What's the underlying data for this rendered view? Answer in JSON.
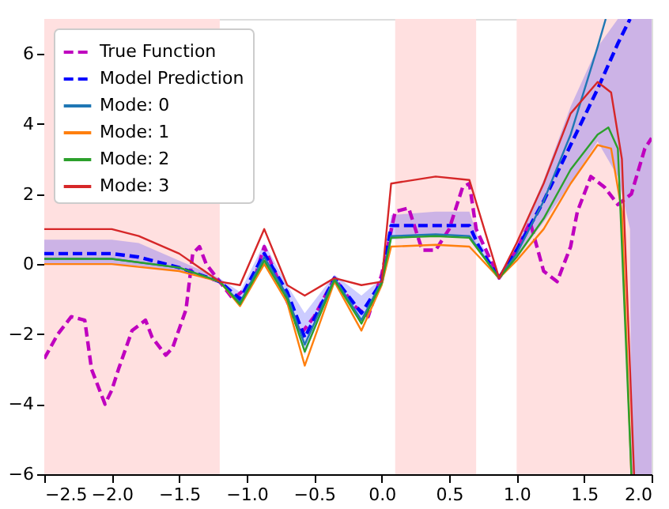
{
  "chart_data": {
    "type": "line",
    "xlim": [
      -2.5,
      2.0
    ],
    "xticks": [
      {
        "value": -2.5,
        "label": "−2.5"
      },
      {
        "value": -2.0,
        "label": "−2.0"
      },
      {
        "value": -1.5,
        "label": "−1.5"
      },
      {
        "value": -1.0,
        "label": "−1.0"
      },
      {
        "value": -0.5,
        "label": "−0.5"
      },
      {
        "value": 0.0,
        "label": "0.0"
      },
      {
        "value": 0.5,
        "label": "0.5"
      },
      {
        "value": 1.0,
        "label": "1.0"
      },
      {
        "value": 1.5,
        "label": "1.5"
      },
      {
        "value": 2.0,
        "label": "2.0"
      }
    ],
    "ylim": [
      -6,
      7
    ],
    "yticks": [
      {
        "value": -6,
        "label": "−6"
      },
      {
        "value": -4,
        "label": "−4"
      },
      {
        "value": -2,
        "label": "−2"
      },
      0,
      2,
      4,
      6
    ],
    "grid": false,
    "legend": "top left",
    "bands": [
      {
        "axis": "x",
        "from": -2.5,
        "to": -1.2,
        "color": "#ffe0e0"
      },
      {
        "axis": "x",
        "from": 0.1,
        "to": 0.7,
        "color": "#ffe0e0"
      },
      {
        "axis": "x",
        "from": 1.0,
        "to": 2.0,
        "color": "#ffe0e0"
      }
    ],
    "series": [
      {
        "name": "True Function",
        "color": "#bf00bf",
        "line_style": "dashed",
        "x": [
          -2.5,
          -2.4,
          -2.3,
          -2.2,
          -2.15,
          -2.1,
          -2.05,
          -2.0,
          -1.95,
          -1.85,
          -1.75,
          -1.7,
          -1.6,
          -1.55,
          -1.45,
          -1.4,
          -1.35,
          -1.3,
          -1.2,
          -1.1,
          -0.95,
          -0.87,
          -0.75,
          -0.6,
          -0.5,
          -0.35,
          -0.2,
          -0.1,
          0.0,
          0.1,
          0.2,
          0.3,
          0.4,
          0.5,
          0.6,
          0.65,
          0.7,
          0.87,
          1.0,
          1.1,
          1.2,
          1.3,
          1.4,
          1.45,
          1.55,
          1.65,
          1.75,
          1.85,
          1.95,
          2.0
        ],
        "values": [
          -2.7,
          -2.0,
          -1.5,
          -1.6,
          -3.0,
          -3.5,
          -4.0,
          -3.6,
          -3.0,
          -1.9,
          -1.6,
          -2.1,
          -2.6,
          -2.4,
          -1.3,
          0.3,
          0.5,
          0.0,
          -0.5,
          -1.0,
          -0.5,
          0.5,
          -0.6,
          -2.0,
          -1.5,
          -0.4,
          -1.2,
          -1.5,
          -0.3,
          1.5,
          1.6,
          0.4,
          0.4,
          1.0,
          2.2,
          2.3,
          1.0,
          -0.4,
          0.4,
          1.2,
          -0.2,
          -0.5,
          0.5,
          1.5,
          2.5,
          2.2,
          1.7,
          2.0,
          3.3,
          3.6
        ]
      },
      {
        "name": "Model Prediction",
        "color": "#0000ff",
        "line_style": "dashed",
        "x": [
          -2.5,
          -2.0,
          -1.8,
          -1.5,
          -1.2,
          -1.05,
          -0.87,
          -0.7,
          -0.57,
          -0.35,
          -0.15,
          0.0,
          0.07,
          0.4,
          0.65,
          0.72,
          0.87,
          1.0,
          1.2,
          1.4,
          1.6,
          1.75,
          1.84,
          1.85,
          2.0
        ],
        "values": [
          0.3,
          0.3,
          0.2,
          -0.1,
          -0.5,
          -1.0,
          0.3,
          -0.8,
          -2.1,
          -0.4,
          -1.4,
          -0.5,
          1.1,
          1.1,
          1.1,
          0.5,
          -0.4,
          0.4,
          1.8,
          3.4,
          5.0,
          6.3,
          7.0,
          null,
          null
        ],
        "lower": [
          0.0,
          0.0,
          -0.05,
          -0.2,
          -0.5,
          -1.2,
          0.0,
          -1.0,
          -2.6,
          -0.5,
          -1.7,
          -0.6,
          0.7,
          0.8,
          0.8,
          0.4,
          -0.4,
          0.2,
          1.2,
          2.3,
          3.5,
          2.5,
          1.0,
          -6.0,
          -6.0
        ],
        "upper": [
          0.7,
          0.7,
          0.6,
          0.1,
          -0.4,
          -0.8,
          0.6,
          -0.6,
          -1.4,
          -0.3,
          -0.9,
          -0.4,
          1.4,
          1.5,
          1.5,
          0.7,
          -0.3,
          0.6,
          2.4,
          4.5,
          6.2,
          7.0,
          7.0,
          7.0,
          7.0
        ]
      },
      {
        "name": "Mode: 0",
        "color": "#1f77b4",
        "line_style": "solid",
        "x": [
          -2.5,
          -2.0,
          -1.5,
          -1.2,
          -1.05,
          -0.87,
          -0.7,
          -0.57,
          -0.35,
          -0.15,
          0.0,
          0.07,
          0.4,
          0.65,
          0.87,
          1.0,
          1.2,
          1.4,
          1.6,
          1.66
        ],
        "values": [
          0.15,
          0.15,
          -0.1,
          -0.5,
          -1.1,
          0.2,
          -0.9,
          -2.3,
          -0.4,
          -1.6,
          -0.5,
          0.8,
          0.85,
          0.8,
          -0.4,
          0.3,
          1.8,
          3.7,
          6.2,
          7.0
        ]
      },
      {
        "name": "Mode: 1",
        "color": "#ff7f0e",
        "line_style": "solid",
        "x": [
          -2.5,
          -2.0,
          -1.5,
          -1.2,
          -1.05,
          -0.87,
          -0.7,
          -0.57,
          -0.35,
          -0.15,
          0.0,
          0.07,
          0.4,
          0.65,
          0.87,
          1.0,
          1.2,
          1.4,
          1.6,
          1.7,
          1.78,
          1.85
        ],
        "values": [
          0.0,
          0.0,
          -0.2,
          -0.5,
          -1.2,
          0.0,
          -1.1,
          -2.9,
          -0.5,
          -1.9,
          -0.6,
          0.5,
          0.55,
          0.5,
          -0.4,
          0.1,
          1.0,
          2.3,
          3.4,
          3.3,
          1.5,
          -6.0
        ]
      },
      {
        "name": "Mode: 2",
        "color": "#2ca02c",
        "line_style": "solid",
        "x": [
          -2.5,
          -2.0,
          -1.5,
          -1.2,
          -1.05,
          -0.87,
          -0.7,
          -0.57,
          -0.35,
          -0.15,
          0.0,
          0.07,
          0.4,
          0.65,
          0.87,
          1.0,
          1.2,
          1.4,
          1.6,
          1.68,
          1.75,
          1.85
        ],
        "values": [
          0.15,
          0.15,
          -0.1,
          -0.5,
          -1.15,
          0.1,
          -1.0,
          -2.5,
          -0.45,
          -1.7,
          -0.55,
          0.75,
          0.8,
          0.75,
          -0.4,
          0.2,
          1.3,
          2.7,
          3.7,
          3.9,
          3.3,
          -6.0
        ]
      },
      {
        "name": "Mode: 3",
        "color": "#d62728",
        "line_style": "solid",
        "x": [
          -2.5,
          -2.0,
          -1.8,
          -1.5,
          -1.2,
          -1.05,
          -0.87,
          -0.7,
          -0.57,
          -0.35,
          -0.15,
          0.0,
          0.07,
          0.4,
          0.65,
          0.87,
          1.0,
          1.2,
          1.4,
          1.6,
          1.7,
          1.78,
          1.87
        ],
        "values": [
          1.0,
          1.0,
          0.8,
          0.3,
          -0.5,
          -0.6,
          1.0,
          -0.6,
          -0.9,
          -0.4,
          -0.6,
          -0.5,
          2.3,
          2.5,
          2.4,
          -0.4,
          0.6,
          2.3,
          4.3,
          5.2,
          4.9,
          3.0,
          -6.0
        ]
      }
    ]
  }
}
